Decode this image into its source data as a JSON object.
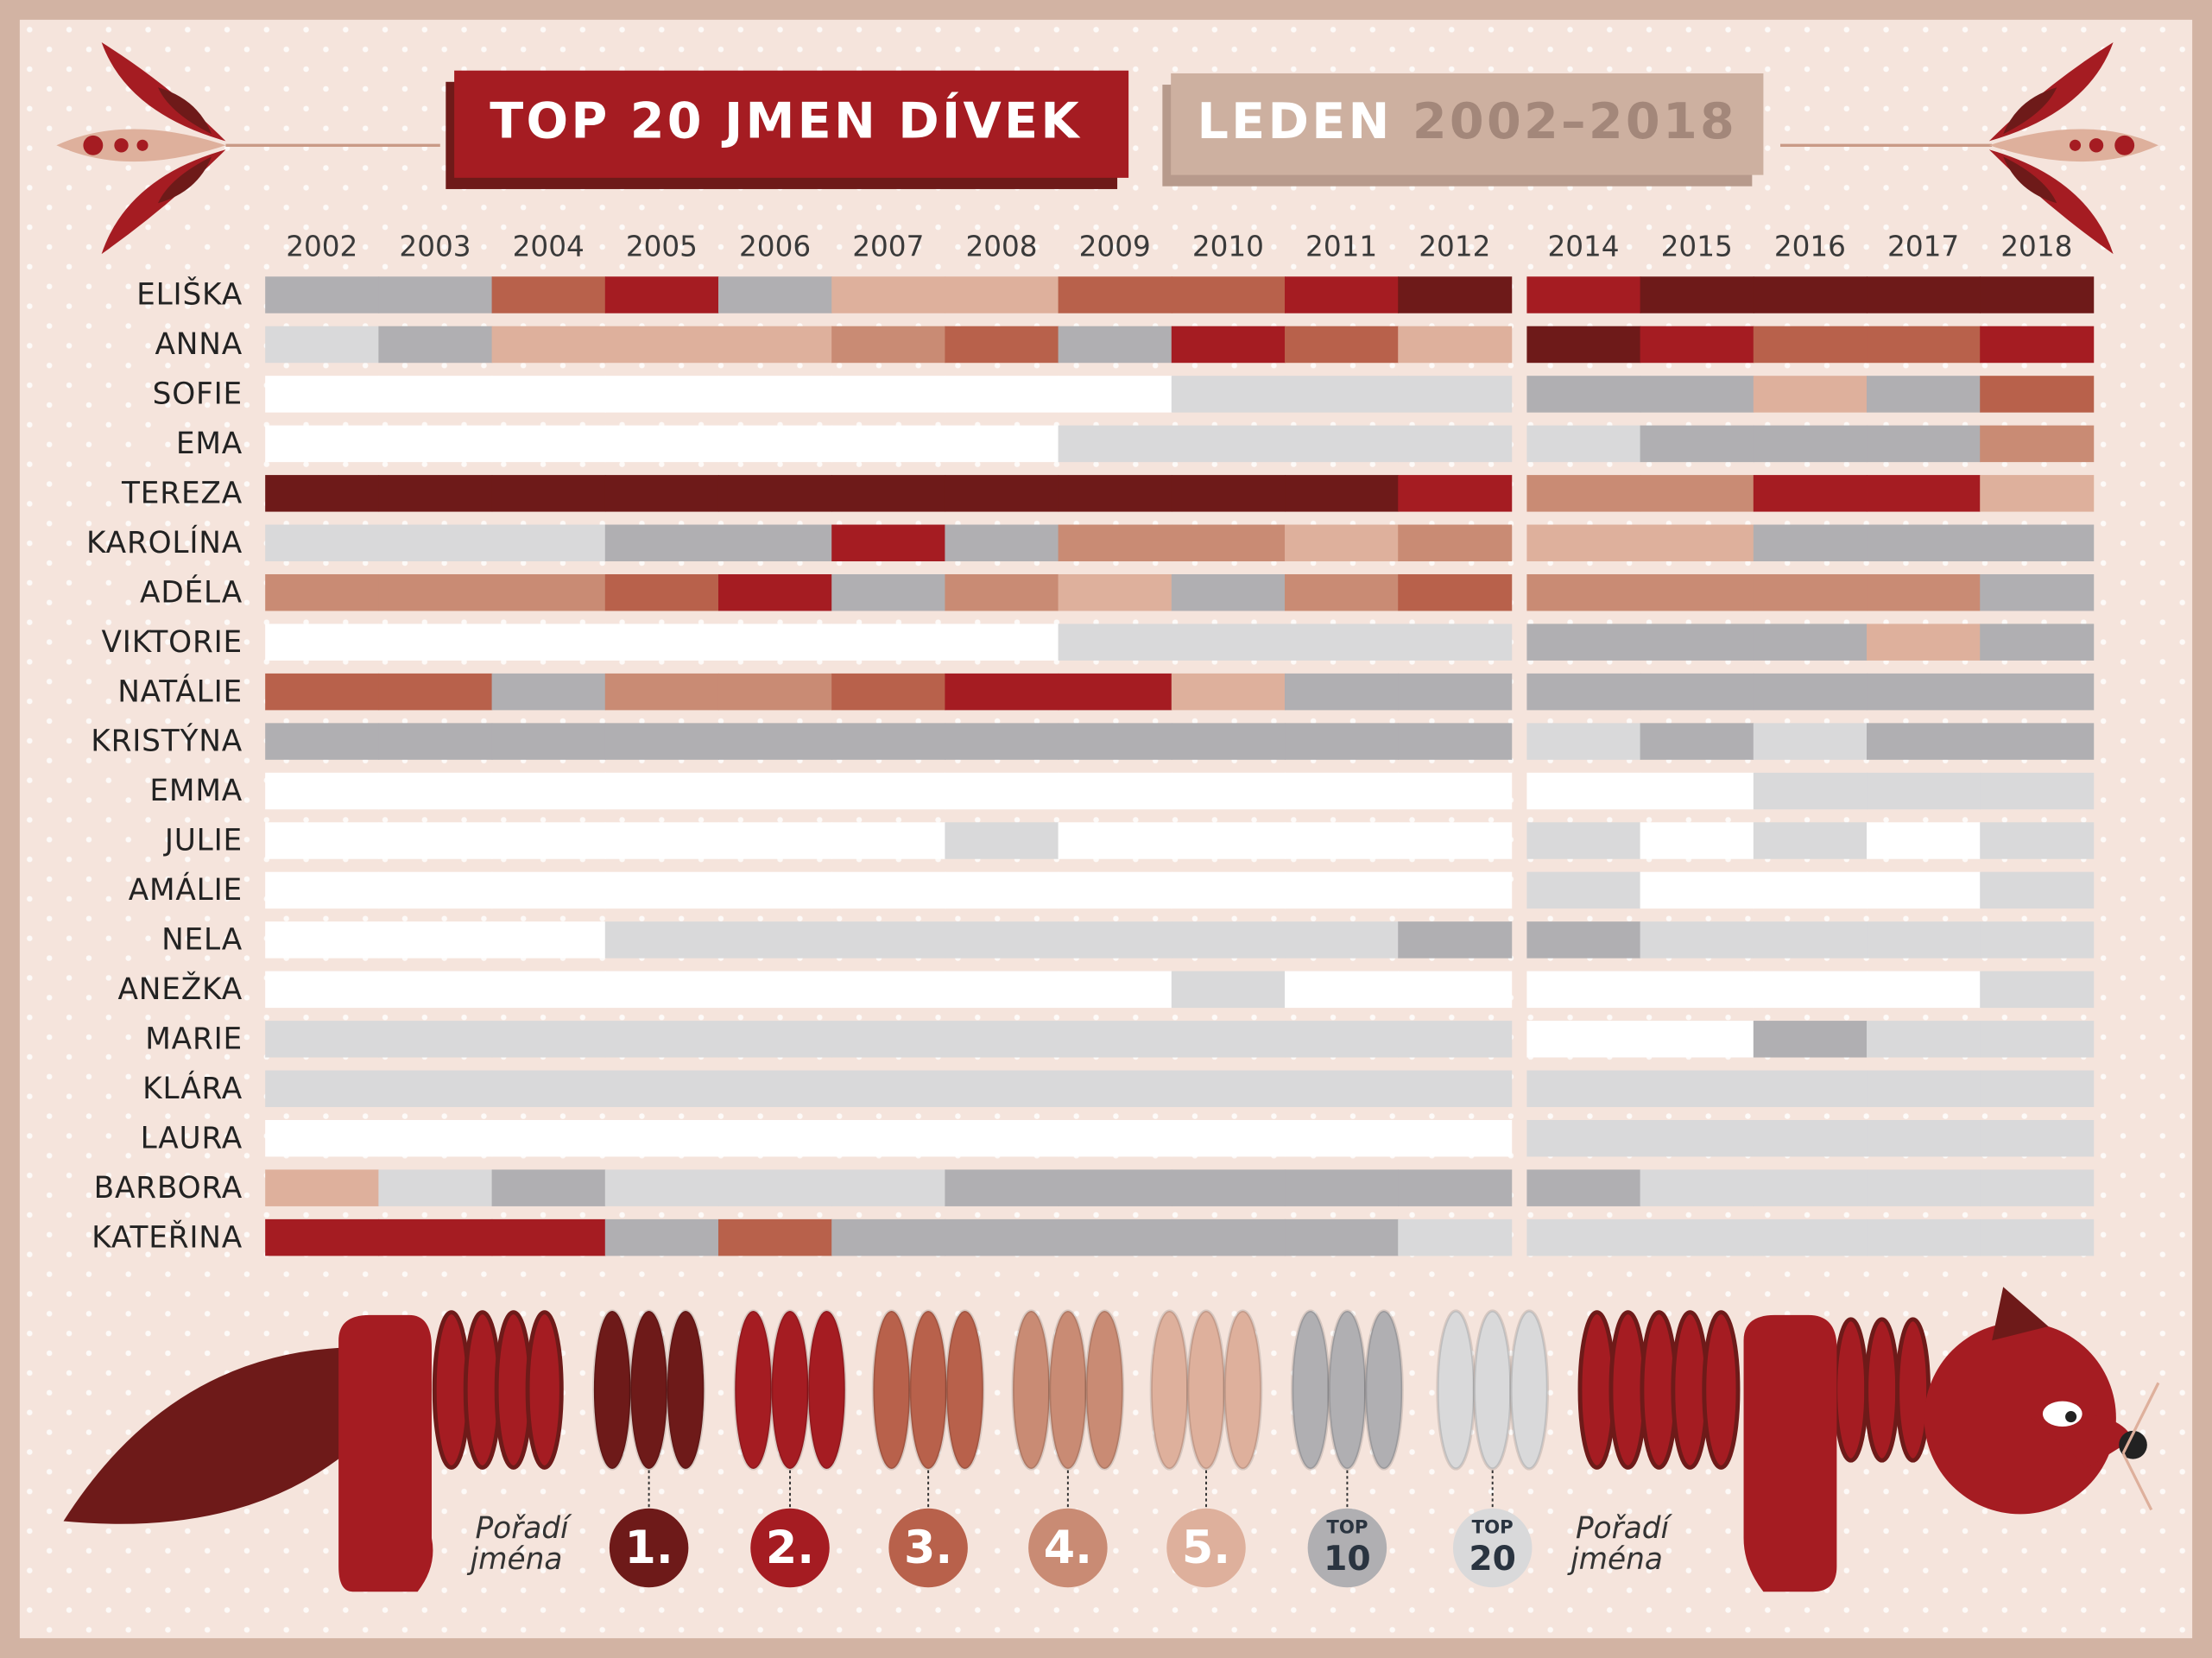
{
  "chart_data": {
    "type": "heatmap",
    "title": "TOP 20 JMEN DÍVEK",
    "subtitle_month": "LEDEN",
    "subtitle_years": "2002–2018",
    "legend_caption": [
      "Pořadí",
      "jména"
    ],
    "columns": [
      2002,
      2003,
      2004,
      2005,
      2006,
      2007,
      2008,
      2009,
      2010,
      2011,
      2012,
      2014,
      2015,
      2016,
      2017,
      2018
    ],
    "rows": [
      "ELIŠKA",
      "ANNA",
      "SOFIE",
      "EMA",
      "TEREZA",
      "KAROLÍNA",
      "ADÉLA",
      "VIKTORIE",
      "NATÁLIE",
      "KRISTÝNA",
      "EMMA",
      "JULIE",
      "AMÁLIE",
      "NELA",
      "ANEŽKA",
      "MARIE",
      "KLÁRA",
      "LAURA",
      "BARBORA",
      "KATEŘINA"
    ],
    "values": [
      [
        10,
        10,
        3,
        2,
        10,
        5,
        5,
        3,
        3,
        2,
        1,
        2,
        1,
        1,
        1,
        1
      ],
      [
        20,
        10,
        5,
        5,
        5,
        4,
        3,
        10,
        2,
        3,
        5,
        1,
        2,
        3,
        3,
        2
      ],
      [
        null,
        null,
        null,
        null,
        null,
        null,
        null,
        null,
        20,
        20,
        20,
        10,
        10,
        5,
        10,
        3
      ],
      [
        null,
        null,
        null,
        null,
        null,
        null,
        null,
        20,
        20,
        20,
        20,
        20,
        10,
        10,
        10,
        4
      ],
      [
        1,
        1,
        1,
        1,
        1,
        1,
        1,
        1,
        1,
        1,
        2,
        4,
        4,
        2,
        2,
        5
      ],
      [
        20,
        20,
        20,
        10,
        10,
        2,
        10,
        4,
        4,
        5,
        4,
        5,
        5,
        10,
        10,
        10
      ],
      [
        4,
        4,
        4,
        3,
        2,
        10,
        4,
        5,
        10,
        4,
        3,
        4,
        4,
        4,
        4,
        10
      ],
      [
        null,
        null,
        null,
        null,
        null,
        null,
        null,
        20,
        20,
        20,
        20,
        10,
        10,
        10,
        5,
        10
      ],
      [
        3,
        3,
        10,
        4,
        4,
        3,
        2,
        2,
        5,
        10,
        10,
        10,
        10,
        10,
        10,
        10
      ],
      [
        10,
        10,
        10,
        10,
        10,
        10,
        10,
        10,
        10,
        10,
        10,
        20,
        10,
        20,
        10,
        10
      ],
      [
        null,
        null,
        null,
        null,
        null,
        null,
        null,
        null,
        null,
        null,
        null,
        null,
        null,
        20,
        20,
        20
      ],
      [
        null,
        null,
        null,
        null,
        null,
        null,
        20,
        null,
        null,
        null,
        null,
        20,
        null,
        20,
        null,
        20
      ],
      [
        null,
        null,
        null,
        null,
        null,
        null,
        null,
        null,
        null,
        null,
        null,
        20,
        null,
        null,
        null,
        20
      ],
      [
        null,
        null,
        null,
        20,
        20,
        20,
        20,
        20,
        20,
        20,
        10,
        10,
        20,
        20,
        20,
        20
      ],
      [
        null,
        null,
        null,
        null,
        null,
        null,
        null,
        null,
        20,
        null,
        null,
        null,
        null,
        null,
        null,
        20
      ],
      [
        20,
        20,
        20,
        20,
        20,
        20,
        20,
        20,
        20,
        20,
        20,
        null,
        null,
        10,
        20,
        20
      ],
      [
        20,
        20,
        20,
        20,
        20,
        20,
        20,
        20,
        20,
        20,
        20,
        20,
        20,
        20,
        20,
        20
      ],
      [
        null,
        null,
        null,
        null,
        null,
        null,
        null,
        null,
        null,
        null,
        null,
        20,
        20,
        20,
        20,
        20
      ],
      [
        5,
        20,
        10,
        20,
        20,
        20,
        10,
        10,
        10,
        10,
        10,
        10,
        20,
        20,
        20,
        20
      ],
      [
        2,
        2,
        2,
        10,
        3,
        10,
        10,
        10,
        10,
        10,
        20,
        20,
        20,
        20,
        20,
        20
      ]
    ],
    "scale": [
      {
        "value": 1,
        "label": "1.",
        "color": "#6e1a19"
      },
      {
        "value": 2,
        "label": "2.",
        "color": "#a51c22"
      },
      {
        "value": 3,
        "label": "3.",
        "color": "#b8614b"
      },
      {
        "value": 4,
        "label": "4.",
        "color": "#c98b74"
      },
      {
        "value": 5,
        "label": "5.",
        "color": "#deb09c"
      },
      {
        "value": 10,
        "top": "TOP",
        "label": "10",
        "color": "#b0afb2"
      },
      {
        "value": 20,
        "top": "TOP",
        "label": "20",
        "color": "#d9d9da"
      }
    ]
  }
}
